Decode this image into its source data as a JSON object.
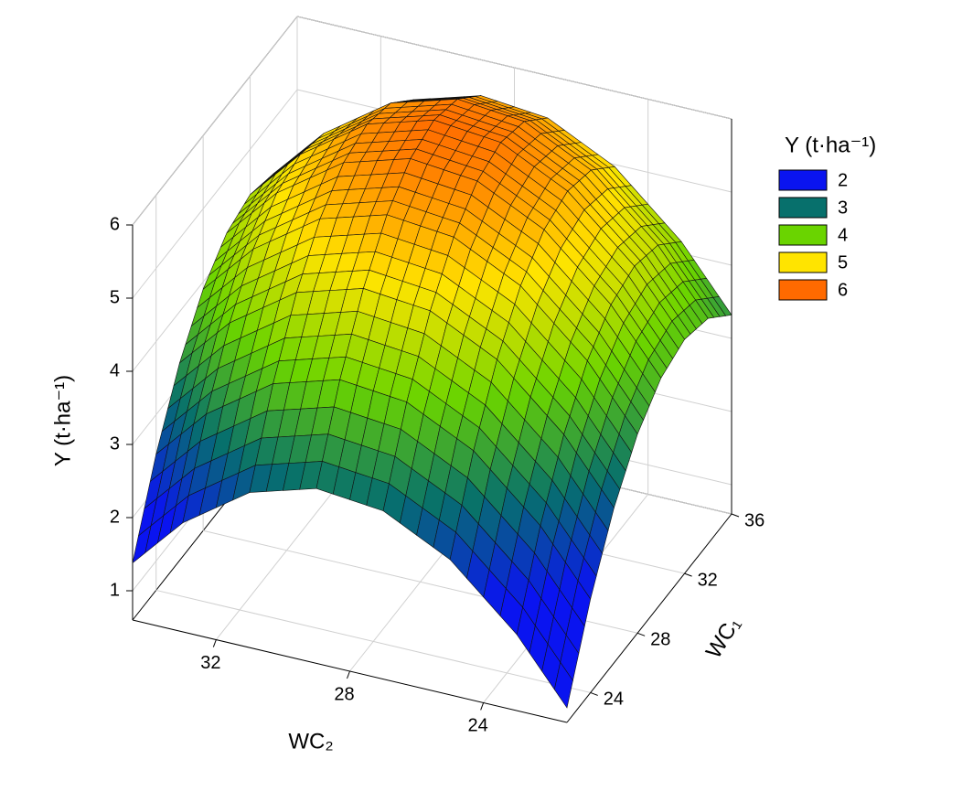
{
  "chart_data": {
    "type": "surface",
    "x_label": "WC₂",
    "y_label": "WC₁",
    "z_label": "Y (t·ha⁻¹)",
    "x": [
      21.5,
      23,
      25,
      27,
      29,
      31,
      33,
      34.5
    ],
    "y": [
      22,
      24,
      26,
      28,
      30,
      32,
      34,
      36
    ],
    "z": [
      [
        0.8,
        1.64,
        2.45,
        2.9,
        2.99,
        2.72,
        2.09,
        1.38
      ],
      [
        1.88,
        2.72,
        3.53,
        3.98,
        4.07,
        3.8,
        3.17,
        2.46
      ],
      [
        2.72,
        3.56,
        4.37,
        4.82,
        4.91,
        4.64,
        4.01,
        3.3
      ],
      [
        3.32,
        4.16,
        4.97,
        5.42,
        5.51,
        5.24,
        4.61,
        3.9
      ],
      [
        3.68,
        4.52,
        5.33,
        5.78,
        5.87,
        5.6,
        4.97,
        4.26
      ],
      [
        3.8,
        4.64,
        5.45,
        5.9,
        5.99,
        5.72,
        5.09,
        4.38
      ],
      [
        3.68,
        4.52,
        5.33,
        5.78,
        5.87,
        5.6,
        4.97,
        4.26
      ],
      [
        3.32,
        4.16,
        4.97,
        5.42,
        5.51,
        5.24,
        4.61,
        3.9
      ]
    ],
    "xlim": [
      21.5,
      34.5
    ],
    "xticks": [
      24,
      28,
      32
    ],
    "ylim": [
      22,
      36
    ],
    "yticks": [
      24,
      28,
      32,
      36
    ],
    "zlim": [
      0.6,
      6
    ],
    "zticks": [
      1,
      2,
      3,
      4,
      5,
      6
    ],
    "grid": true,
    "legend_position": "right",
    "legend": {
      "title": "Y (t·ha⁻¹)",
      "levels": [
        2,
        3,
        4,
        5,
        6
      ],
      "colors": [
        "#0a14f0",
        "#07706c",
        "#6ad400",
        "#ffe400",
        "#ff6a00"
      ]
    }
  }
}
